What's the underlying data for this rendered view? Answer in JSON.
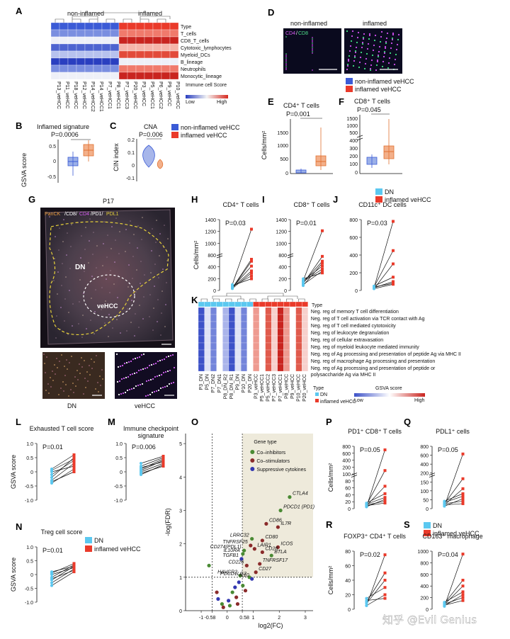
{
  "colors": {
    "blue": "#3b5bd6",
    "red": "#ea3a2a",
    "lightblue": "#5bc8f0",
    "co_inhib": "#4a8a34",
    "co_stim": "#8a2b2b",
    "supp": "#3338b0",
    "o_bg": "#eeeadb"
  },
  "panels": [
    "A",
    "B",
    "C",
    "D",
    "E",
    "F",
    "G",
    "H",
    "I",
    "J",
    "K",
    "L",
    "M",
    "N",
    "O",
    "P",
    "Q",
    "R",
    "S"
  ],
  "A": {
    "groups": [
      "non-inflamed",
      "inflamed"
    ],
    "rows": [
      "Type",
      "T_cells",
      "CD8_T_cells",
      "Cytotoxic_lymphocytes",
      "Myeloid_DCs",
      "B_lineage",
      "Neutrophils",
      "Monocytic_lineage"
    ],
    "cols": [
      "P13_veHCC",
      "P11_veHCC",
      "P18_veHCC",
      "P12_veHCC",
      "P14_veHCC2",
      "P14_veHCC1",
      "P7_veHCC1",
      "P8_veHCC1",
      "P7_veHCC3",
      "P20_veHCC",
      "P3_veHCC",
      "P5_veHCC1",
      "P6_veHCC2",
      "P9_veHCC",
      "P10_veHCC"
    ],
    "legend_title": "Immune cell Score",
    "legend_low": "Low",
    "legend_high": "High"
  },
  "B": {
    "title": "Inflamed signature",
    "pvalue": "P=0.0006",
    "ylabel": "GSVA score",
    "ticks": [
      "0.5",
      "0",
      "-0.5"
    ],
    "legend": [
      "non-inflamed veHCC",
      "inflamed veHCC"
    ]
  },
  "C": {
    "title": "CNA",
    "pvalue": "P=0.006",
    "ylabel": "CIN index",
    "ticks": [
      "0.2",
      "0.1",
      "0",
      "-0.1"
    ]
  },
  "D": {
    "labels": [
      "non-inflamed",
      "inflamed"
    ],
    "stain_cd4": "CD4",
    "stain_sep": "/",
    "stain_cd8": "CD8",
    "legend": [
      "non-inflamed veHCC",
      "inflamed veHCC"
    ]
  },
  "E": {
    "title": "CD4⁺ T cells",
    "pvalue": "P=0.001",
    "ylabel": "Cells/mm²",
    "ticks": [
      "1500",
      "1000",
      "500",
      "0"
    ]
  },
  "F": {
    "title": "CD8⁺ T cells",
    "pvalue": "P=0.045",
    "ticks": [
      "1500",
      "1000",
      "500",
      "400",
      "300",
      "200",
      "100",
      "0"
    ]
  },
  "G": {
    "patient": "P17",
    "stain": [
      "PanCK",
      "/CD8/",
      "CD4",
      "/PD1/",
      "PDL1"
    ],
    "regions": [
      "DN",
      "veHCC"
    ],
    "insets": [
      "DN",
      "veHCC"
    ]
  },
  "H": {
    "title": "CD4⁺ T cells",
    "pvalue": "P=0.03",
    "ylabel": "Cells/mm²",
    "ticks": [
      "1400",
      "1200",
      "1000",
      "800",
      "400",
      "200",
      "0"
    ],
    "pairs": [
      [
        20,
        300
      ],
      [
        30,
        200
      ],
      [
        40,
        150
      ],
      [
        25,
        320
      ],
      [
        50,
        120
      ],
      [
        30,
        250
      ],
      [
        20,
        180
      ],
      [
        60,
        1100
      ]
    ]
  },
  "I": {
    "title": "CD8⁺ T cells",
    "pvalue": "P=0.01",
    "ticks": [
      "1400",
      "1200",
      "1000",
      "800",
      "400",
      "200",
      "0"
    ],
    "pairs": [
      [
        60,
        200
      ],
      [
        80,
        300
      ],
      [
        100,
        250
      ],
      [
        70,
        350
      ],
      [
        120,
        180
      ],
      [
        90,
        220
      ],
      [
        50,
        280
      ],
      [
        100,
        1050
      ]
    ]
  },
  "J": {
    "title": "CD11c⁺ DC cells",
    "pvalue": "P=0.03",
    "ticks": [
      "800",
      "600",
      "400",
      "200",
      "0"
    ],
    "legend": [
      "DN",
      "inflamed veHCC"
    ],
    "pairs": [
      [
        30,
        780
      ],
      [
        40,
        450
      ],
      [
        20,
        300
      ],
      [
        50,
        150
      ],
      [
        30,
        100
      ],
      [
        40,
        80
      ],
      [
        20,
        70
      ]
    ]
  },
  "K": {
    "rows": [
      "Neg. reg of memory T cell differentiation",
      "Neg. reg of T cell activation via TCR contact with Ag",
      "Neg. reg of T cell mediated cytotoxicity",
      "Neg. reg of leukocyte degranulation",
      "Neg. reg of cellular extravasation",
      "Neg. reg of myeloid leukocyte mediated immunity",
      "Neg. reg of Ag processing and presentation of peptide Ag via MHC II",
      "Neg. reg of macrophage Ag processing and presentation",
      "Neg. reg of Ag processing and presentation of peptide or",
      "polysaccharide Ag via MHC II"
    ],
    "type_label": "Type",
    "cols": [
      "P3_DN",
      "P5_DN",
      "P7_DN2",
      "P7_DN1",
      "P8_DN_R2",
      "P8_DN_R1",
      "P9_DN",
      "P10_DN",
      "P20_DN",
      "P3_veHCC",
      "P5_veHCC1",
      "P5_veHCC2",
      "P7_veHCC3",
      "P7_veHCC1",
      "P8_veHCC",
      "P9_veHCC",
      "P10_veHCC",
      "P20_veHCC"
    ],
    "legend_type": "Type",
    "legend_type_items": [
      "DN",
      "inflamed veHCC"
    ],
    "legend_score": "GSVA score",
    "legend_low": "Low",
    "legend_high": "High"
  },
  "L": {
    "title": "Exhausted T cell score",
    "pvalue": "P=0.01",
    "ylabel": "GSVA score",
    "ticks": [
      "1.0",
      "0.5",
      "0",
      "-0.5",
      "-1.0"
    ],
    "pairs": [
      [
        -0.4,
        0.1
      ],
      [
        -0.3,
        0.3
      ],
      [
        -0.1,
        0.4
      ],
      [
        0.0,
        0.2
      ],
      [
        -0.2,
        0.5
      ],
      [
        0.1,
        0.6
      ],
      [
        -0.35,
        0.0
      ],
      [
        0.05,
        0.45
      ]
    ]
  },
  "M": {
    "title": "Immune checkpoint",
    "title2": "signature",
    "pvalue": "P=0.006",
    "ticks": [
      "1.0",
      "0.5",
      "0",
      "-0.5",
      "-1.0"
    ],
    "pairs": [
      [
        0.0,
        0.3
      ],
      [
        0.1,
        0.45
      ],
      [
        0.2,
        0.5
      ],
      [
        -0.1,
        0.25
      ],
      [
        0.3,
        0.55
      ],
      [
        0.05,
        0.4
      ],
      [
        -0.05,
        0.2
      ],
      [
        0.15,
        0.35
      ]
    ]
  },
  "N": {
    "title": "Treg cell score",
    "pvalue": "P=0.01",
    "ylabel": "GSVA score",
    "ticks": [
      "1.0",
      "0.5",
      "0",
      "-0.5",
      "-1.0"
    ],
    "legend": [
      "DN",
      "inflamed veHCC"
    ],
    "pairs": [
      [
        -0.4,
        0.1
      ],
      [
        -0.2,
        0.3
      ],
      [
        -0.1,
        0.35
      ],
      [
        0.0,
        0.25
      ],
      [
        -0.3,
        0.2
      ],
      [
        0.05,
        0.4
      ],
      [
        -0.15,
        0.15
      ],
      [
        0.1,
        0.3
      ]
    ]
  },
  "O": {
    "ylabel": "-log(FDR)",
    "xlabel": "log2(FC)",
    "xticks": [
      "-1",
      "-0.58",
      "0",
      "0.58",
      "1",
      "2",
      "3"
    ],
    "yticks": [
      "5",
      "4",
      "3",
      "2",
      "1",
      "0"
    ],
    "legend_title": "Gene type",
    "legend": [
      "Co–inhibitors",
      "Co–stimulators",
      "Suppressive cytokines"
    ],
    "genes": [
      {
        "label": "CTLA4",
        "x": 2.4,
        "y": 3.4,
        "t": "co_inhib"
      },
      {
        "label": "PDCD1 (PD1)",
        "x": 2.05,
        "y": 3.0,
        "t": "co_inhib"
      },
      {
        "label": "CD86",
        "x": 1.5,
        "y": 2.6,
        "t": "co_stim"
      },
      {
        "label": "IL7R",
        "x": 1.95,
        "y": 2.5,
        "t": "co_stim"
      },
      {
        "label": "LRRC32",
        "x": 0.95,
        "y": 2.15,
        "t": "co_inhib"
      },
      {
        "label": "CD80",
        "x": 1.35,
        "y": 2.1,
        "t": "co_stim"
      },
      {
        "label": "TNFRSF25",
        "x": 0.9,
        "y": 1.95,
        "t": "co_stim"
      },
      {
        "label": "LAIR1",
        "x": 1.05,
        "y": 1.85,
        "t": "co_stim"
      },
      {
        "label": "ICOS",
        "x": 1.95,
        "y": 1.9,
        "t": "co_stim"
      },
      {
        "label": "CD274(PDL1)",
        "x": 0.65,
        "y": 1.8,
        "t": "co_inhib"
      },
      {
        "label": "CD28",
        "x": 1.35,
        "y": 1.75,
        "t": "co_stim"
      },
      {
        "label": "IL10RA",
        "x": 0.6,
        "y": 1.7,
        "t": "co_inhib"
      },
      {
        "label": "BTLA",
        "x": 1.7,
        "y": 1.65,
        "t": "co_inhib"
      },
      {
        "label": "TGFB1",
        "x": 0.55,
        "y": 1.55,
        "t": "supp"
      },
      {
        "label": "TNFRSF17",
        "x": 1.25,
        "y": 1.4,
        "t": "co_stim"
      },
      {
        "label": "CD226",
        "x": 0.75,
        "y": 1.35,
        "t": "co_stim"
      },
      {
        "label": "CD27",
        "x": 1.1,
        "y": 1.15,
        "t": "co_stim"
      },
      {
        "label": "HAVCR2",
        "x": 0.5,
        "y": 1.05,
        "t": "co_inhib"
      },
      {
        "label": "PDCD1LG2",
        "x": 0.85,
        "y": 1.0,
        "t": "co_inhib"
      },
      {
        "label": "IL10",
        "x": 0.95,
        "y": 0.95,
        "t": "supp"
      }
    ],
    "other_points": [
      [
        -0.7,
        1.35
      ],
      [
        -0.4,
        0.55
      ],
      [
        -0.35,
        0.35
      ],
      [
        -0.2,
        0.2
      ],
      [
        -0.15,
        0.1
      ],
      [
        0.05,
        0.3
      ],
      [
        0.2,
        0.55
      ],
      [
        0.35,
        0.4
      ],
      [
        0.45,
        0.85
      ],
      [
        0.6,
        0.75
      ],
      [
        0.7,
        0.6
      ],
      [
        0.3,
        0.7
      ],
      [
        0.1,
        0.15
      ],
      [
        0.4,
        0.2
      ]
    ]
  },
  "P": {
    "title": "PD1⁺ CD8⁺ T cells",
    "pvalue": "P=0.05",
    "ylabel": "Cells/mm²",
    "ticks": [
      "800",
      "600",
      "400",
      "200",
      "100",
      "80",
      "60",
      "40",
      "20",
      "0"
    ]
  },
  "Q": {
    "title": "PDL1⁺ cells",
    "pvalue": "P=0.05",
    "ticks": [
      "800",
      "600",
      "400",
      "200",
      "150",
      "100",
      "50",
      "0"
    ],
    "legend": [
      "DN",
      "inflamed veHCC"
    ]
  },
  "R": {
    "title": "FOXP3⁺ CD4⁺ T cells",
    "pvalue": "P=0.02",
    "ylabel": "Cells/mm²",
    "ticks": [
      "80",
      "60",
      "40",
      "20",
      "0"
    ]
  },
  "S": {
    "title": "CD163⁺ macrophage",
    "pvalue": "P=0.04",
    "ticks": [
      "1000",
      "800",
      "600",
      "400",
      "200",
      "0"
    ]
  },
  "watermark": "知乎 @Evil Genius"
}
